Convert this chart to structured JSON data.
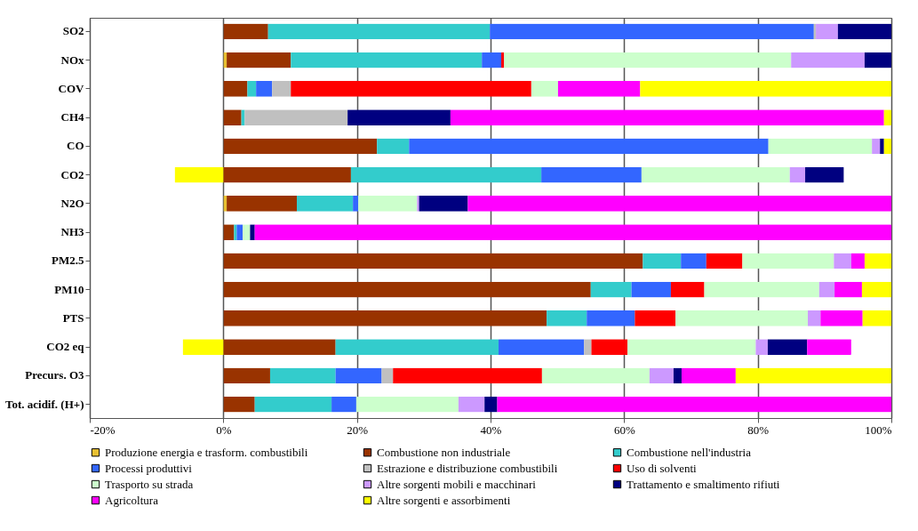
{
  "chart_data": {
    "type": "bar",
    "orientation": "horizontal",
    "stacked": true,
    "categories": [
      "SO2",
      "NOx",
      "COV",
      "CH4",
      "CO",
      "CO2",
      "N2O",
      "NH3",
      "PM2.5",
      "PM10",
      "PTS",
      "CO2 eq",
      "Precurs. O3",
      "Tot. acidif. (H+)"
    ],
    "series": [
      {
        "name": "Produzione energia e trasform. combustibili",
        "color": "#e8c032",
        "values": [
          null,
          0.5,
          null,
          null,
          null,
          null,
          0.5,
          null,
          null,
          null,
          null,
          null,
          null,
          null
        ]
      },
      {
        "name": "Combustione non industriale",
        "color": "#993300",
        "values": [
          6.7,
          9.6,
          3.6,
          2.7,
          23,
          19.1,
          10.5,
          1.6,
          62.8,
          55,
          48.4,
          16.8,
          7,
          4.7
        ]
      },
      {
        "name": "Combustione nell'industria",
        "color": "#33cccc",
        "values": [
          33.2,
          28.6,
          1.3,
          0.5,
          4.8,
          28.5,
          8.4,
          0.4,
          5.7,
          6.1,
          6,
          24.4,
          9.8,
          11.5
        ]
      },
      {
        "name": "Processi produttivi",
        "color": "#3366ff",
        "values": [
          48.5,
          2.9,
          2.4,
          null,
          53.8,
          15,
          0.8,
          0.9,
          3.8,
          5.9,
          7.2,
          12.8,
          6.9,
          3.7
        ]
      },
      {
        "name": "Estrazione e distribuzione combustibili",
        "color": "#c0c0c0",
        "values": [
          0.3,
          null,
          2.8,
          15.4,
          null,
          null,
          null,
          null,
          null,
          null,
          null,
          1.1,
          1.7,
          null
        ]
      },
      {
        "name": "Uso di solventi",
        "color": "#ff0000",
        "values": [
          null,
          0.4,
          36,
          null,
          null,
          null,
          null,
          null,
          5.4,
          5,
          6.1,
          5.4,
          22.3,
          null
        ]
      },
      {
        "name": "Trasporto su strada",
        "color": "#ccffcc",
        "values": [
          null,
          43,
          4,
          null,
          15.5,
          22.2,
          8.8,
          1.1,
          13.7,
          17.2,
          19.8,
          19.2,
          16.1,
          15.3
        ]
      },
      {
        "name": "Altre sorgenti mobili e macchinari",
        "color": "#cc99ff",
        "values": [
          3.3,
          11,
          null,
          null,
          1.2,
          2.3,
          0.3,
          null,
          2.6,
          2.3,
          1.9,
          1.8,
          3.6,
          3.9
        ]
      },
      {
        "name": "Trattamento e smaltimento rifiuti",
        "color": "#000080",
        "values": [
          8,
          4,
          null,
          15.4,
          0.6,
          5.8,
          7.3,
          0.7,
          null,
          null,
          null,
          5.9,
          1.2,
          1.9
        ]
      },
      {
        "name": "Agricoltura",
        "color": "#ff00ff",
        "values": [
          null,
          null,
          12.3,
          64.9,
          null,
          null,
          63.4,
          95.3,
          2,
          4.1,
          6.3,
          6.6,
          8.1,
          59
        ]
      },
      {
        "name": "Altre sorgenti e assorbimenti",
        "color": "#ffff00",
        "values": [
          null,
          null,
          37.6,
          1.1,
          1.1,
          -7.3,
          null,
          null,
          4,
          4.4,
          4.3,
          -6.1,
          23.3,
          null
        ]
      }
    ],
    "xlim": [
      -20,
      100
    ],
    "xticks": [
      {
        "value": -20,
        "label": "-20%"
      },
      {
        "value": 0,
        "label": "0%"
      },
      {
        "value": 20,
        "label": "20%"
      },
      {
        "value": 40,
        "label": "40%"
      },
      {
        "value": 60,
        "label": "60%"
      },
      {
        "value": 80,
        "label": "80%"
      },
      {
        "value": 100,
        "label": "100%"
      }
    ],
    "grid": "x",
    "legend": "bottom"
  }
}
